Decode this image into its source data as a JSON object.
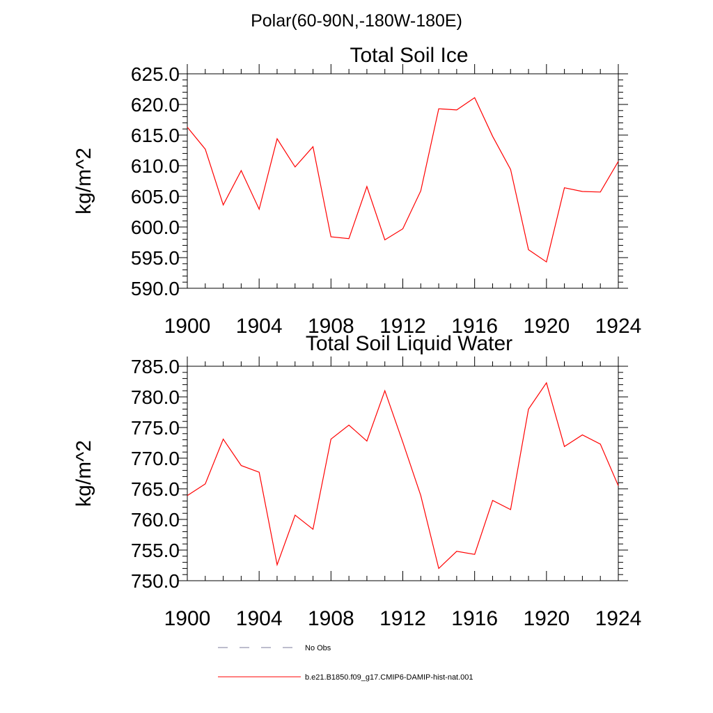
{
  "figure": {
    "title": "Polar(60-90N,-180W-180E)"
  },
  "chart_data": [
    {
      "type": "line",
      "title": "Total Soil Ice",
      "xlabel": "",
      "ylabel": "kg/m^2",
      "xlim": [
        1900,
        1924
      ],
      "ylim": [
        590,
        625
      ],
      "x_ticks": [
        "1900",
        "1904",
        "1908",
        "1912",
        "1916",
        "1920",
        "1924"
      ],
      "y_ticks": [
        "590.0",
        "595.0",
        "600.0",
        "605.0",
        "610.0",
        "615.0",
        "620.0",
        "625.0"
      ],
      "series": [
        {
          "color": "#ff0000",
          "x": [
            1900,
            1901,
            1902,
            1903,
            1904,
            1905,
            1906,
            1907,
            1908,
            1909,
            1910,
            1911,
            1912,
            1913,
            1914,
            1915,
            1916,
            1917,
            1918,
            1919,
            1920,
            1921,
            1922,
            1923,
            1924
          ],
          "values": [
            616.3,
            612.7,
            603.6,
            609.2,
            602.9,
            614.4,
            609.8,
            613.1,
            598.4,
            598.1,
            606.6,
            597.9,
            599.7,
            605.9,
            619.3,
            619.1,
            621.1,
            614.8,
            609.4,
            596.3,
            594.3,
            606.4,
            605.8,
            605.7,
            610.7
          ]
        }
      ]
    },
    {
      "type": "line",
      "title": "Total Soil Liquid Water",
      "xlabel": "",
      "ylabel": "kg/m^2",
      "xlim": [
        1900,
        1924
      ],
      "ylim": [
        750,
        785
      ],
      "x_ticks": [
        "1900",
        "1904",
        "1908",
        "1912",
        "1916",
        "1920",
        "1924"
      ],
      "y_ticks": [
        "750.0",
        "755.0",
        "760.0",
        "765.0",
        "770.0",
        "775.0",
        "780.0",
        "785.0"
      ],
      "series": [
        {
          "color": "#ff0000",
          "x": [
            1900,
            1901,
            1902,
            1903,
            1904,
            1905,
            1906,
            1907,
            1908,
            1909,
            1910,
            1911,
            1912,
            1913,
            1914,
            1915,
            1916,
            1917,
            1918,
            1919,
            1920,
            1921,
            1922,
            1923,
            1924
          ],
          "values": [
            763.9,
            765.8,
            773.1,
            768.8,
            767.7,
            752.6,
            760.7,
            758.4,
            773.1,
            775.4,
            772.8,
            781.0,
            772.6,
            763.9,
            752.0,
            754.8,
            754.3,
            763.1,
            761.6,
            778.0,
            782.3,
            771.9,
            773.8,
            772.3,
            765.5
          ]
        }
      ]
    }
  ],
  "legend": [
    {
      "label": "No Obs",
      "style": "dashed",
      "color": "#7b7b9b"
    },
    {
      "label": "b.e21.B1850.f09_g17.CMIP6-DAMIP-hist-nat.001",
      "style": "solid",
      "color": "#ff0000"
    }
  ]
}
